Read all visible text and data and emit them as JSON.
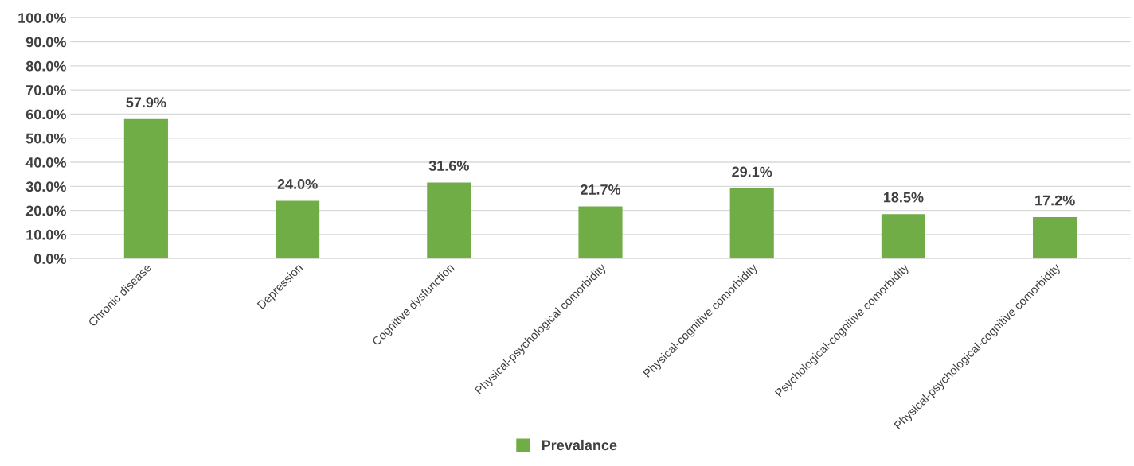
{
  "chart_data": {
    "type": "bar",
    "categories": [
      "Chronic disease",
      "Depression",
      "Cognitive dysfunction",
      "Physical-psychological comorbidity",
      "Physical-cognitive comorbidity",
      "Psychological-cognitive comorbidity",
      "Physical-psychological-cognitive comorbidity"
    ],
    "series": [
      {
        "name": "Prevalance",
        "color": "#70ad47",
        "values": [
          57.9,
          24.0,
          31.6,
          21.7,
          29.1,
          18.5,
          17.2
        ]
      }
    ],
    "ylim": [
      0,
      100
    ],
    "yticks": [
      {
        "value": 0,
        "label": "0.0%"
      },
      {
        "value": 10,
        "label": "10.0%"
      },
      {
        "value": 20,
        "label": "20.0%"
      },
      {
        "value": 30,
        "label": "30.0%"
      },
      {
        "value": 40,
        "label": "40.0%"
      },
      {
        "value": 50,
        "label": "50.0%"
      },
      {
        "value": 60,
        "label": "60.0%"
      },
      {
        "value": 70,
        "label": "70.0%"
      },
      {
        "value": 80,
        "label": "80.0%"
      },
      {
        "value": 90,
        "label": "90.0%"
      },
      {
        "value": 100,
        "label": "100.0%"
      }
    ],
    "value_labels": [
      "57.9%",
      "24.0%",
      "31.6%",
      "21.7%",
      "29.1%",
      "18.5%",
      "17.2%"
    ],
    "grid": "y",
    "legend": "bottom"
  }
}
